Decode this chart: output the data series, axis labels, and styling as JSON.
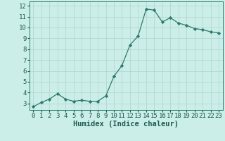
{
  "x": [
    0,
    1,
    2,
    3,
    4,
    5,
    6,
    7,
    8,
    9,
    10,
    11,
    12,
    13,
    14,
    15,
    16,
    17,
    18,
    19,
    20,
    21,
    22,
    23
  ],
  "y": [
    2.7,
    3.1,
    3.4,
    3.9,
    3.4,
    3.2,
    3.3,
    3.2,
    3.2,
    3.7,
    5.5,
    6.5,
    8.4,
    9.2,
    11.7,
    11.6,
    10.5,
    10.9,
    10.4,
    10.2,
    9.9,
    9.8,
    9.6,
    9.5
  ],
  "xlabel": "Humidex (Indice chaleur)",
  "xlim": [
    -0.5,
    23.5
  ],
  "ylim": [
    2.4,
    12.4
  ],
  "yticks": [
    3,
    4,
    5,
    6,
    7,
    8,
    9,
    10,
    11,
    12
  ],
  "xticks": [
    0,
    1,
    2,
    3,
    4,
    5,
    6,
    7,
    8,
    9,
    10,
    11,
    12,
    13,
    14,
    15,
    16,
    17,
    18,
    19,
    20,
    21,
    22,
    23
  ],
  "line_color": "#2d7a6e",
  "marker_color": "#2d7a6e",
  "bg_color": "#cceee8",
  "grid_color": "#aed4cc",
  "axes_bg": "#cceee8",
  "xlabel_fontsize": 7.5,
  "tick_fontsize": 6.5,
  "label_color": "#1a5a50"
}
